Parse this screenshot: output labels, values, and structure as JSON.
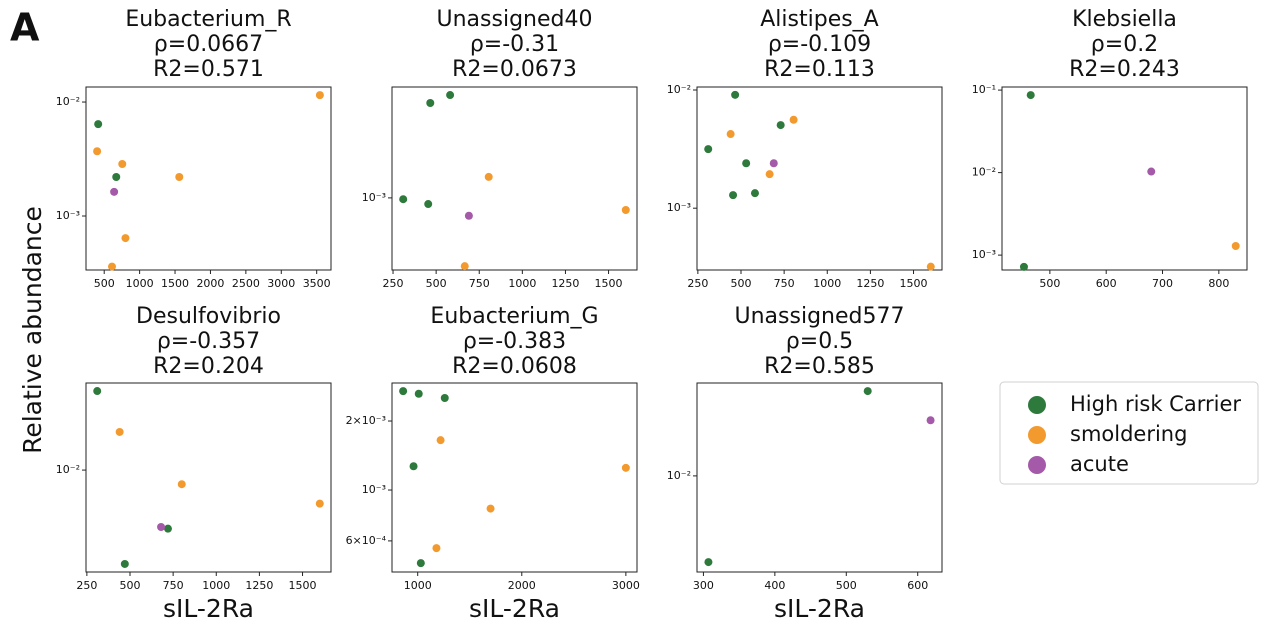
{
  "panel_label": "A",
  "ylabel": "Relative abundance",
  "legend": {
    "items": [
      {
        "name": "High risk Carrier",
        "color": "#2e7a3c"
      },
      {
        "name": "smoldering",
        "color": "#f39a2e"
      },
      {
        "name": "acute",
        "color": "#a45aa8"
      }
    ]
  },
  "chart_data": [
    {
      "type": "scatter",
      "title": "Eubacterium_R",
      "subtitle": [
        "ρ=0.0667",
        "R2=0.571"
      ],
      "ylog": true,
      "xlim": [
        243,
        3702
      ],
      "xticks": [
        500,
        1000,
        1500,
        2000,
        2500,
        3000,
        3500
      ],
      "ylim": [
        0.000336,
        0.01355
      ],
      "yticks": [
        {
          "value": 0.001,
          "label": "10⁻³"
        },
        {
          "value": 0.01,
          "label": "10⁻²"
        }
      ],
      "series": [
        {
          "name": "High risk Carrier",
          "color": "#2e7a3c",
          "x": [
            415,
            670
          ],
          "values": [
            0.0064,
            0.0022
          ]
        },
        {
          "name": "smoldering",
          "color": "#f39a2e",
          "x": [
            400,
            755,
            1560,
            800,
            610,
            3545
          ],
          "values": [
            0.0037,
            0.00286,
            0.0022,
            0.00064,
            0.00036,
            0.0115
          ]
        },
        {
          "name": "acute",
          "color": "#a45aa8",
          "x": [
            640
          ],
          "values": [
            0.00163
          ]
        }
      ]
    },
    {
      "type": "scatter",
      "title": "Unassigned40",
      "subtitle": [
        "ρ=-0.31",
        "R2=0.0673"
      ],
      "ylog": true,
      "xlim": [
        244,
        1665
      ],
      "xticks": [
        250,
        500,
        750,
        1000,
        1250,
        1500
      ],
      "ylim": [
        0.00033,
        0.0055
      ],
      "yticks": [
        {
          "value": 0.001,
          "label": "10⁻³"
        }
      ],
      "series": [
        {
          "name": "High risk Carrier",
          "color": "#2e7a3c",
          "x": [
            309,
            466,
            581,
            454
          ],
          "values": [
            0.00098,
            0.0043,
            0.00486,
            0.00091
          ]
        },
        {
          "name": "smoldering",
          "color": "#f39a2e",
          "x": [
            666,
            805,
            1600
          ],
          "values": [
            0.00035,
            0.00138,
            0.00083
          ]
        },
        {
          "name": "acute",
          "color": "#a45aa8",
          "x": [
            690
          ],
          "values": [
            0.00076
          ]
        }
      ]
    },
    {
      "type": "scatter",
      "title": "Alistipes_A",
      "subtitle": [
        "ρ=-0.109",
        "R2=0.113"
      ],
      "ylog": true,
      "xlim": [
        245,
        1665
      ],
      "xticks": [
        250,
        500,
        750,
        1000,
        1250,
        1500
      ],
      "ylim": [
        0.0003,
        0.0106
      ],
      "yticks": [
        {
          "value": 0.001,
          "label": "10⁻³"
        },
        {
          "value": 0.01,
          "label": "10⁻²"
        }
      ],
      "series": [
        {
          "name": "High risk Carrier",
          "color": "#2e7a3c",
          "x": [
            310,
            466,
            530,
            730,
            454,
            581
          ],
          "values": [
            0.00316,
            0.0091,
            0.0024,
            0.00505,
            0.00129,
            0.00134
          ]
        },
        {
          "name": "smoldering",
          "color": "#f39a2e",
          "x": [
            440,
            666,
            805,
            1600
          ],
          "values": [
            0.00424,
            0.00194,
            0.0056,
            0.00032
          ]
        },
        {
          "name": "acute",
          "color": "#a45aa8",
          "x": [
            690
          ],
          "values": [
            0.0024
          ]
        }
      ]
    },
    {
      "type": "scatter",
      "title": "Klebsiella",
      "subtitle": [
        "ρ=0.2",
        "R2=0.243"
      ],
      "ylog": true,
      "xlim": [
        415,
        850
      ],
      "xticks": [
        500,
        600,
        700,
        800
      ],
      "ylim": [
        0.00066,
        0.109
      ],
      "yticks": [
        {
          "value": 0.001,
          "label": "10⁻³"
        },
        {
          "value": 0.01,
          "label": "10⁻²"
        },
        {
          "value": 0.1,
          "label": "10⁻¹"
        }
      ],
      "series": [
        {
          "name": "High risk Carrier",
          "color": "#2e7a3c",
          "x": [
            466,
            454
          ],
          "values": [
            0.087,
            0.00072
          ]
        },
        {
          "name": "smoldering",
          "color": "#f39a2e",
          "x": [
            830
          ],
          "values": [
            0.00129
          ]
        },
        {
          "name": "acute",
          "color": "#a45aa8",
          "x": [
            680
          ],
          "values": [
            0.0103
          ]
        }
      ]
    },
    {
      "type": "scatter",
      "title": "Desulfovibrio",
      "subtitle": [
        "ρ=-0.357",
        "R2=0.204"
      ],
      "ylog": true,
      "xlabel": "sIL-2Ra",
      "xlim": [
        245,
        1665
      ],
      "xticks": [
        250,
        500,
        750,
        1000,
        1250,
        1500
      ],
      "ylim": [
        0.0031,
        0.0272
      ],
      "yticks": [
        {
          "value": 0.01,
          "label": "10⁻²"
        }
      ],
      "series": [
        {
          "name": "High risk Carrier",
          "color": "#2e7a3c",
          "x": [
            310,
            720,
            470
          ],
          "values": [
            0.0248,
            0.0051,
            0.0034
          ]
        },
        {
          "name": "smoldering",
          "color": "#f39a2e",
          "x": [
            440,
            800,
            1600
          ],
          "values": [
            0.0155,
            0.0085,
            0.0068
          ]
        },
        {
          "name": "acute",
          "color": "#a45aa8",
          "x": [
            680
          ],
          "values": [
            0.0052
          ]
        }
      ]
    },
    {
      "type": "scatter",
      "title": "Eubacterium_G",
      "subtitle": [
        "ρ=-0.383",
        "R2=0.0608"
      ],
      "ylog": true,
      "xlabel": "sIL-2Ra",
      "xlim": [
        753,
        3107
      ],
      "xticks": [
        1000,
        2000,
        3000
      ],
      "ylim": [
        0.000439,
        0.00293
      ],
      "yticks": [
        {
          "value": 0.0006,
          "label": "6×10⁻⁴"
        },
        {
          "value": 0.001,
          "label": "10⁻³"
        },
        {
          "value": 0.002,
          "label": "2×10⁻³"
        }
      ],
      "series": [
        {
          "name": "High risk Carrier",
          "color": "#2e7a3c",
          "x": [
            860,
            1010,
            1260,
            960,
            1030
          ],
          "values": [
            0.0027,
            0.00263,
            0.00252,
            0.00127,
            0.00048
          ]
        },
        {
          "name": "smoldering",
          "color": "#f39a2e",
          "x": [
            1220,
            3000,
            1700,
            1180
          ],
          "values": [
            0.00165,
            0.00125,
            0.00083,
            0.000558
          ]
        }
      ]
    },
    {
      "type": "scatter",
      "title": "Unassigned577",
      "subtitle": [
        "ρ=0.5",
        "R2=0.585"
      ],
      "ylog": true,
      "xlabel": "sIL-2Ra",
      "xlim": [
        291,
        634
      ],
      "xticks": [
        300,
        400,
        500,
        600
      ],
      "ylim": [
        0.0033,
        0.0292
      ],
      "yticks": [
        {
          "value": 0.01,
          "label": "10⁻²"
        }
      ],
      "series": [
        {
          "name": "High risk Carrier",
          "color": "#2e7a3c",
          "x": [
            307,
            530
          ],
          "values": [
            0.0037,
            0.0266
          ]
        },
        {
          "name": "acute",
          "color": "#a45aa8",
          "x": [
            618
          ],
          "values": [
            0.019
          ]
        }
      ]
    }
  ]
}
